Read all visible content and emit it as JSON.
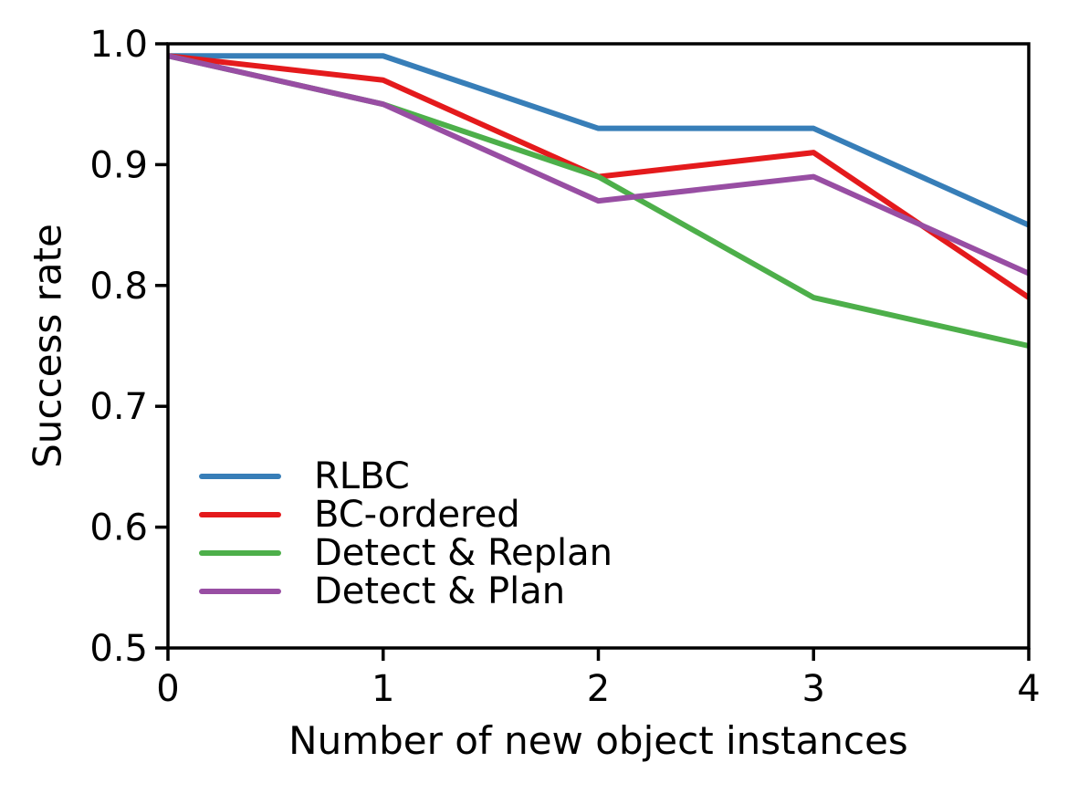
{
  "figure": {
    "background": "#ffffff",
    "text_color": "#000000"
  },
  "chart_data": {
    "type": "line",
    "title": "",
    "xlabel": "Number of new object instances",
    "ylabel": "Success rate",
    "x": [
      0,
      1,
      2,
      3,
      4
    ],
    "xlim": [
      0,
      4
    ],
    "ylim": [
      0.5,
      1.0
    ],
    "grid": false,
    "legend_position": "lower-left-inside",
    "axis_color": "#000000",
    "line_width": 6,
    "xticks": {
      "values": [
        0,
        1,
        2,
        3,
        4
      ],
      "labels": [
        "0",
        "1",
        "2",
        "3",
        "4"
      ]
    },
    "yticks": {
      "values": [
        0.5,
        0.6,
        0.7,
        0.8,
        0.9,
        1.0
      ],
      "labels": [
        "0.5",
        "0.6",
        "0.7",
        "0.8",
        "0.9",
        "1.0"
      ]
    },
    "series": [
      {
        "name": "RLBC",
        "color": "#377eb8",
        "values": [
          0.99,
          0.99,
          0.93,
          0.93,
          0.85
        ]
      },
      {
        "name": "BC-ordered",
        "color": "#e41a1c",
        "values": [
          0.99,
          0.97,
          0.89,
          0.91,
          0.79
        ]
      },
      {
        "name": "Detect & Replan",
        "color": "#4daf4a",
        "values": [
          0.99,
          0.95,
          0.89,
          0.79,
          0.75
        ]
      },
      {
        "name": "Detect & Plan",
        "color": "#984ea3",
        "values": [
          0.99,
          0.95,
          0.87,
          0.89,
          0.81
        ]
      }
    ]
  }
}
